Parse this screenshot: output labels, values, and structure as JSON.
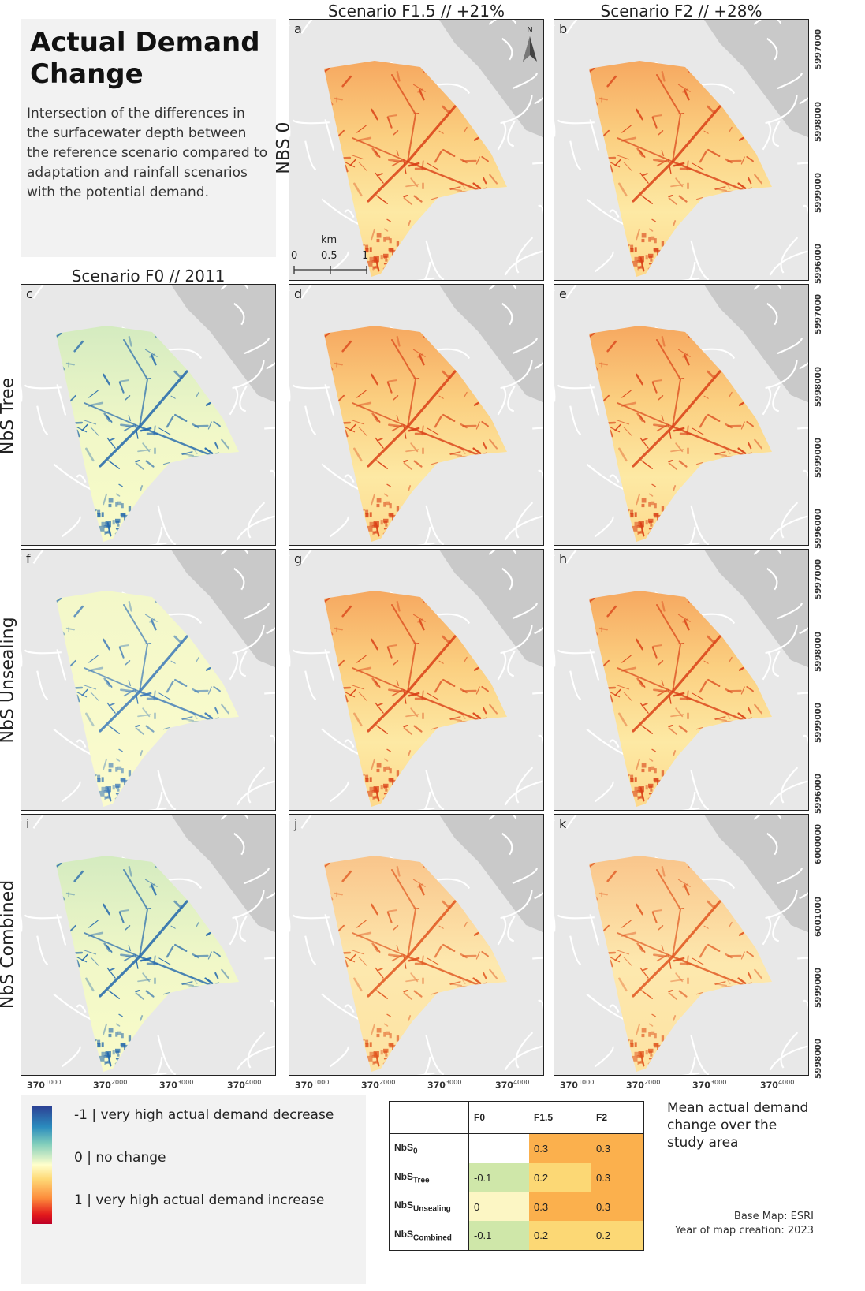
{
  "title": "Actual Demand Change",
  "description": "Intersection of the differences in the surfacewater depth between the reference scenario compared to adaptation and rainfall scenarios with the potential demand.",
  "column_headers": {
    "f0": "Scenario F0 // 2011",
    "f15": "Scenario F1.5 // +21%",
    "f2": "Scenario F2 // +28%"
  },
  "row_headers": {
    "nbs0": "NBS 0",
    "tree": "NbS Tree",
    "unsealing": "NbS Unsealing",
    "combined": "NbS Combined"
  },
  "panels": {
    "a": "a",
    "b": "b",
    "c": "c",
    "d": "d",
    "e": "e",
    "f": "f",
    "g": "g",
    "h": "h",
    "i": "i",
    "j": "j",
    "k": "k"
  },
  "north_label": "N",
  "scalebar": {
    "unit": "km",
    "ticks": [
      "0",
      "0.5",
      "1"
    ]
  },
  "y_axis_labels": {
    "standard": [
      "5997000",
      "5998000",
      "5999000",
      "5996000"
    ],
    "bottom": [
      "6000000",
      "6001000",
      "5999000",
      "5998000"
    ],
    "prefix": "599",
    "prefix_bottom": "600"
  },
  "x_axis_labels": [
    {
      "main": "370",
      "sub": "1000"
    },
    {
      "main": "370",
      "sub": "2000"
    },
    {
      "main": "370",
      "sub": "3000"
    },
    {
      "main": "370",
      "sub": "4000"
    }
  ],
  "legend": {
    "top": "-1 | very high actual demand decrease",
    "mid": "0 | no change",
    "bottom": "1 | very high actual demand increase"
  },
  "mean_table": {
    "columns": [
      "",
      "F0",
      "F1.5",
      "F2"
    ],
    "rows": [
      {
        "name": "NbS",
        "sub": "0",
        "f0": "",
        "f15": "0.3",
        "f2": "0.3"
      },
      {
        "name": "NbS",
        "sub": "Tree",
        "f0": "-0.1",
        "f15": "0.2",
        "f2": "0.3"
      },
      {
        "name": "NbS",
        "sub": "Unsealing",
        "f0": "0",
        "f15": "0.3",
        "f2": "0.3"
      },
      {
        "name": "NbS",
        "sub": "Combined",
        "f0": "-0.1",
        "f15": "0.2",
        "f2": "0.2"
      }
    ],
    "colors": {
      "0.3": "#fbb04d",
      "0.2": "#fcd875",
      "-0.1": "#cfe7a9",
      "0": "#fcf6c4"
    }
  },
  "mean_caption": "Mean actual demand change over the study area",
  "credits": {
    "basemap": "Base Map: ESRI",
    "year": "Year of map creation: 2023"
  }
}
